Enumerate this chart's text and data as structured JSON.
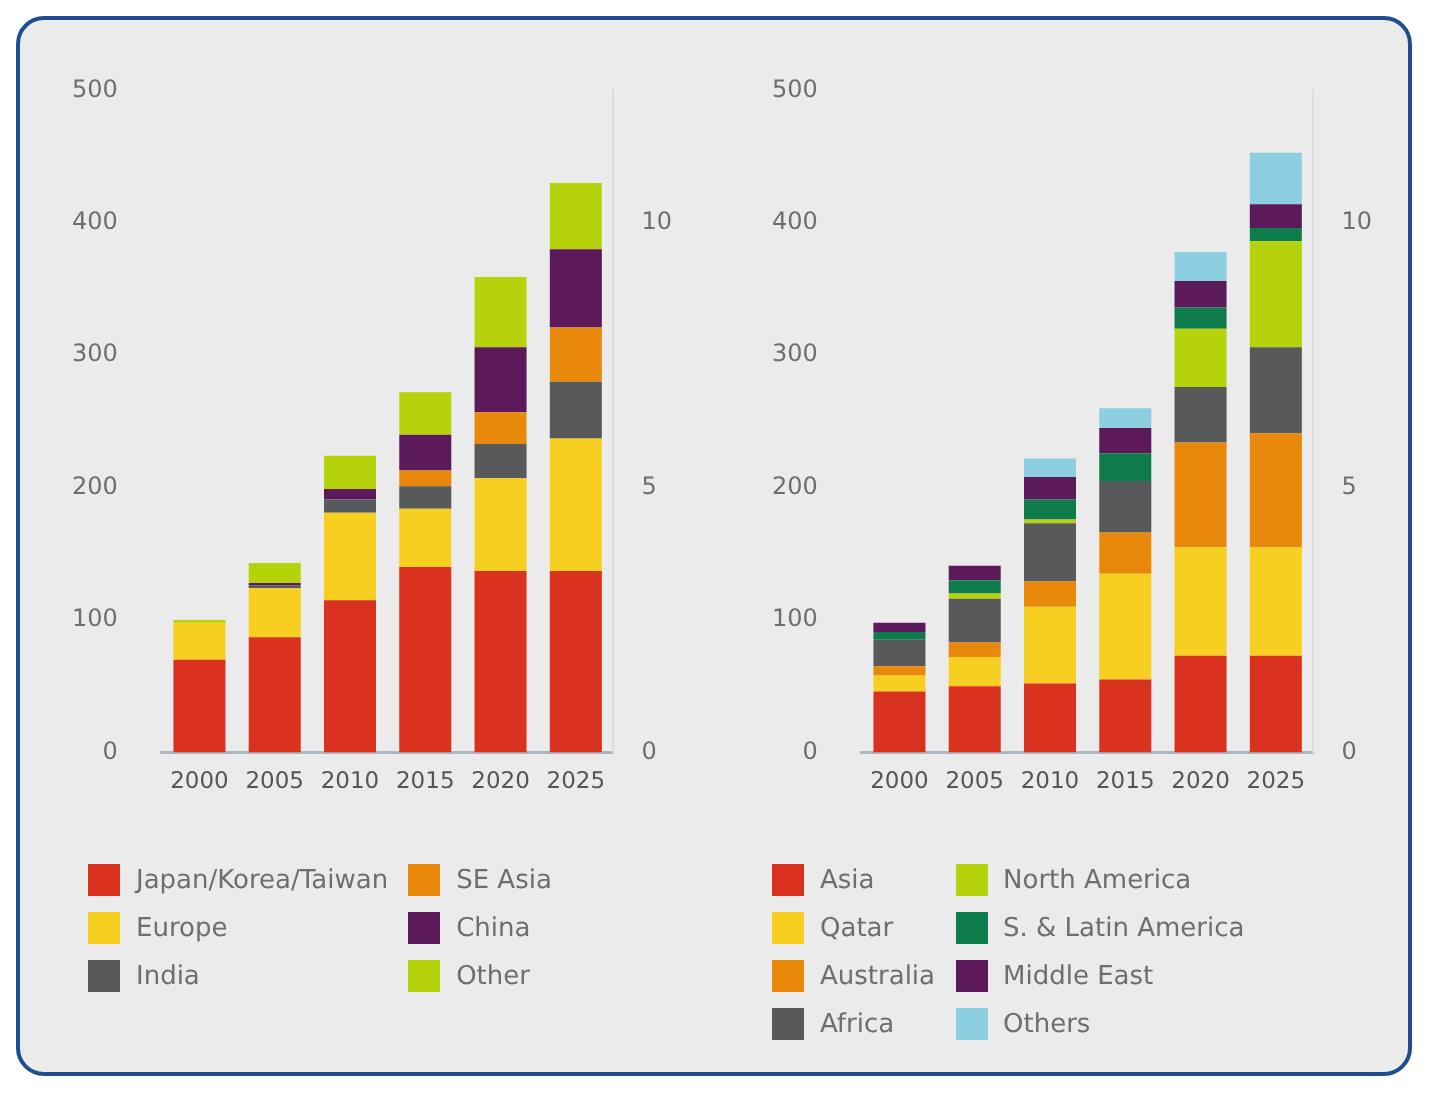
{
  "chart_data": [
    {
      "type": "bar",
      "stacked": true,
      "categories": [
        "2000",
        "2005",
        "2010",
        "2015",
        "2020",
        "2025"
      ],
      "ylim": [
        0,
        500
      ],
      "yticks": [
        0,
        100,
        200,
        300,
        400,
        500
      ],
      "y2lim": [
        0,
        12.5
      ],
      "y2ticks": [
        0,
        5,
        10
      ],
      "grid": false,
      "legend": "bottom",
      "series": [
        {
          "name": "Japan/Korea/Taiwan",
          "color": "#d9321e",
          "values": [
            70,
            87,
            115,
            140,
            137,
            137
          ]
        },
        {
          "name": "Europe",
          "color": "#f7cf20",
          "values": [
            28,
            37,
            66,
            44,
            70,
            100
          ]
        },
        {
          "name": "India",
          "color": "#58595b",
          "values": [
            0,
            2,
            10,
            17,
            26,
            43
          ]
        },
        {
          "name": "SE Asia",
          "color": "#e8890c",
          "values": [
            0,
            0,
            0,
            12,
            24,
            41
          ]
        },
        {
          "name": "China",
          "color": "#5c1a5a",
          "values": [
            0,
            2,
            8,
            27,
            49,
            59
          ]
        },
        {
          "name": "Other",
          "color": "#b5d20a",
          "values": [
            2,
            15,
            25,
            32,
            53,
            50
          ]
        }
      ]
    },
    {
      "type": "bar",
      "stacked": true,
      "categories": [
        "2000",
        "2005",
        "2010",
        "2015",
        "2020",
        "2025"
      ],
      "ylim": [
        0,
        500
      ],
      "yticks": [
        0,
        100,
        200,
        300,
        400,
        500
      ],
      "y2lim": [
        0,
        12.5
      ],
      "y2ticks": [
        0,
        5,
        10
      ],
      "grid": false,
      "legend": "bottom",
      "series": [
        {
          "name": "Asia",
          "color": "#d9321e",
          "values": [
            46,
            50,
            52,
            55,
            73,
            73
          ]
        },
        {
          "name": "Qatar",
          "color": "#f7cf20",
          "values": [
            12,
            22,
            58,
            80,
            82,
            82
          ]
        },
        {
          "name": "Australia",
          "color": "#e8890c",
          "values": [
            7,
            11,
            19,
            31,
            79,
            86
          ]
        },
        {
          "name": "Africa",
          "color": "#58595b",
          "values": [
            20,
            33,
            44,
            39,
            42,
            65
          ]
        },
        {
          "name": "North America",
          "color": "#b5d20a",
          "values": [
            0,
            4,
            3,
            0,
            44,
            80
          ]
        },
        {
          "name": "S. & Latin America",
          "color": "#0e7c4a",
          "values": [
            6,
            10,
            15,
            21,
            16,
            10
          ]
        },
        {
          "name": "Middle East",
          "color": "#5c1a5a",
          "values": [
            7,
            11,
            17,
            19,
            20,
            18
          ]
        },
        {
          "name": "Others",
          "color": "#8ccfe0",
          "values": [
            0,
            0,
            14,
            15,
            22,
            39
          ]
        }
      ]
    }
  ]
}
